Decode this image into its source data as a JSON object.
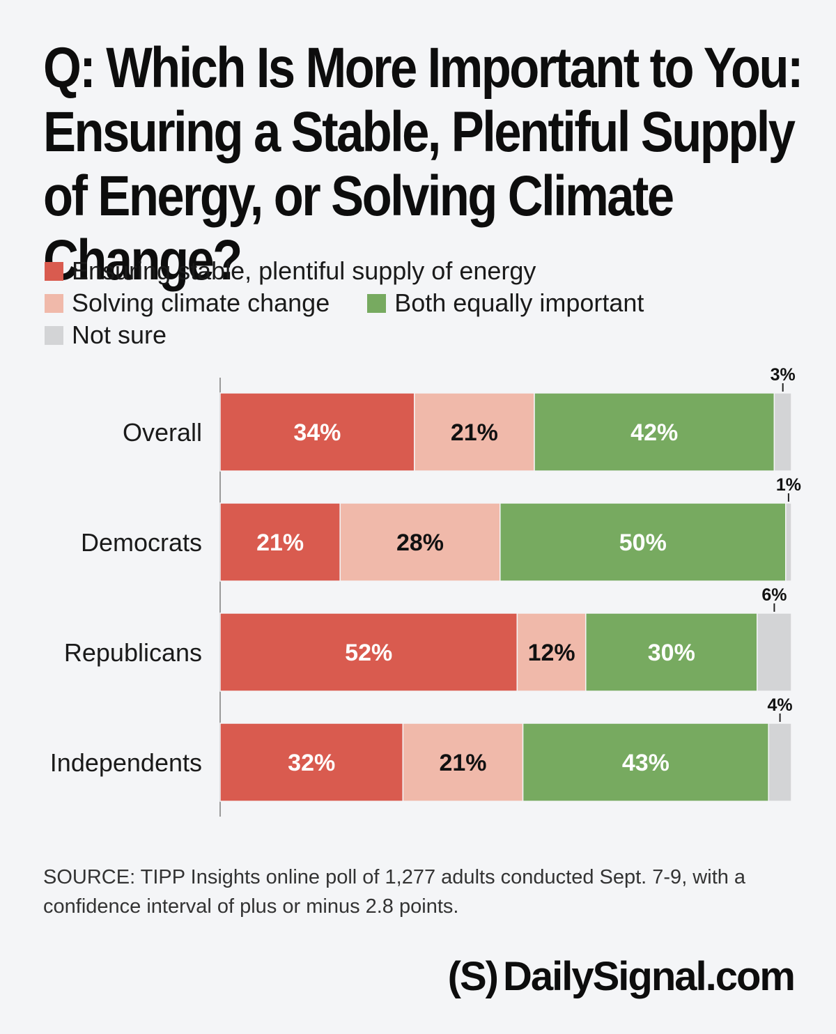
{
  "title": "Q: Which Is More Important to You: Ensuring a Stable, Plentiful Supply of Energy, or Solving Climate Change?",
  "colors": {
    "energy": "#d95b4f",
    "climate": "#f0b9aa",
    "both": "#77aa60",
    "not_sure": "#d3d4d6"
  },
  "legend": [
    {
      "label": "Ensuring stable, plentiful supply of energy",
      "color": "#d95b4f"
    },
    {
      "label": "Solving climate change",
      "color": "#f0b9aa"
    },
    {
      "label": "Both equally important",
      "color": "#77aa60"
    },
    {
      "label": "Not sure",
      "color": "#d3d4d6"
    }
  ],
  "chart_data": {
    "type": "bar",
    "orientation": "horizontal",
    "stacked": true,
    "categories": [
      "Overall",
      "Democrats",
      "Republicans",
      "Independents"
    ],
    "series": [
      {
        "name": "Ensuring stable, plentiful supply of energy",
        "values": [
          34,
          21,
          52,
          32
        ]
      },
      {
        "name": "Solving climate change",
        "values": [
          21,
          28,
          12,
          21
        ]
      },
      {
        "name": "Both equally important",
        "values": [
          42,
          50,
          30,
          43
        ]
      },
      {
        "name": "Not sure",
        "values": [
          3,
          1,
          6,
          4
        ]
      }
    ],
    "unit": "%",
    "xlim": [
      0,
      100
    ]
  },
  "source": "SOURCE: TIPP Insights online poll of 1,277 adults conducted Sept. 7-9, with a confidence interval of plus or minus 2.8 points.",
  "brand": {
    "mark": "(S)",
    "name": "DailySignal.com"
  }
}
